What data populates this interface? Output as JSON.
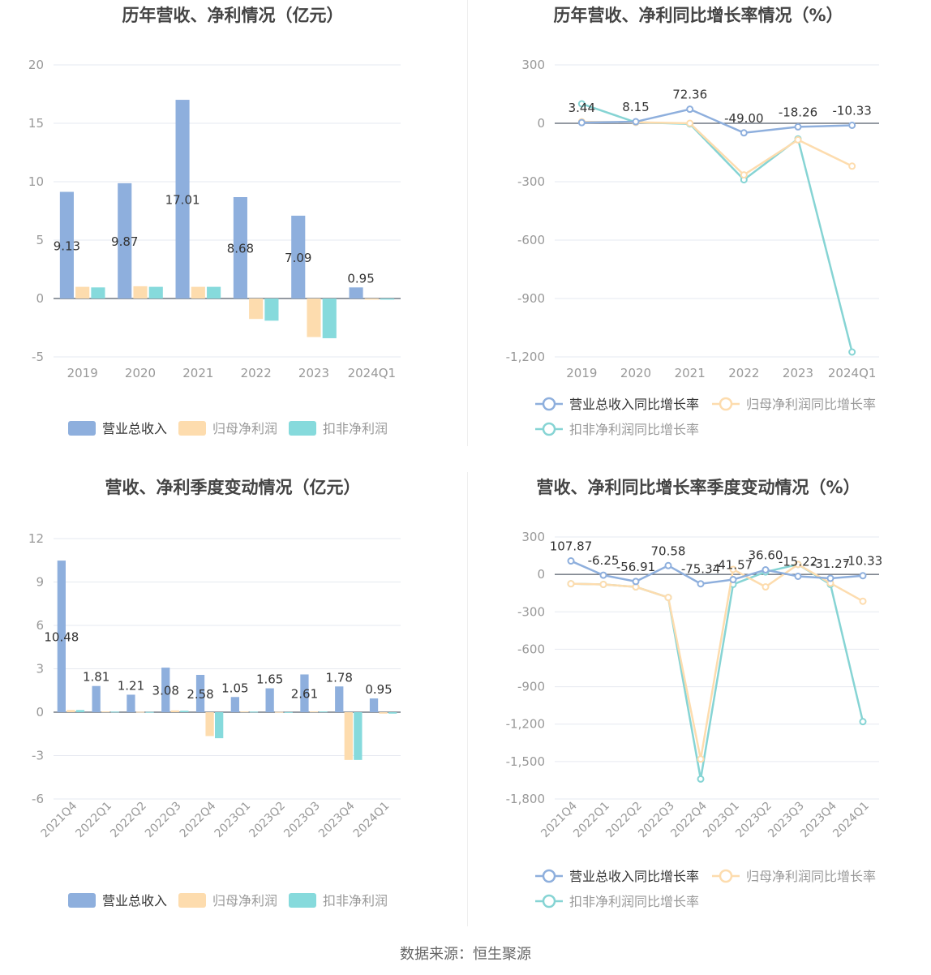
{
  "footer": {
    "source": "数据来源：恒生聚源"
  },
  "colors": {
    "revenue": "#8eafdd",
    "net_profit": "#fddcae",
    "deducted": "#86dadc",
    "line_revenue": "#8eafdd",
    "line_net": "#fddcae",
    "line_deducted": "#86d4d4",
    "grid": "#e6e9f0",
    "axis_text": "#999999",
    "title": "#444444"
  },
  "chart_data": [
    {
      "type": "bar",
      "title": "历年营收、净利情况（亿元）",
      "categories": [
        "2019",
        "2020",
        "2021",
        "2022",
        "2023",
        "2024Q1"
      ],
      "series": [
        {
          "name": "营业总收入",
          "values": [
            9.13,
            9.87,
            17.01,
            8.68,
            7.09,
            0.95
          ],
          "labels": [
            "9.13",
            "9.87",
            "17.01",
            "8.68",
            "7.09",
            "0.95"
          ]
        },
        {
          "name": "归母净利润",
          "values": [
            1.0,
            1.05,
            1.0,
            -1.75,
            -3.3,
            -0.1
          ]
        },
        {
          "name": "扣非净利润",
          "values": [
            0.95,
            1.0,
            1.0,
            -1.9,
            -3.4,
            -0.1
          ]
        }
      ],
      "ylim": [
        -5,
        20
      ],
      "yticks": [
        -5,
        0,
        5,
        10,
        15,
        20
      ],
      "ytick_labels": [
        "-5",
        "0",
        "5",
        "10",
        "15",
        "20"
      ],
      "grid": true,
      "legend": "bottom"
    },
    {
      "type": "line",
      "title": "历年营收、净利同比增长率情况（%）",
      "categories": [
        "2019",
        "2020",
        "2021",
        "2022",
        "2023",
        "2024Q1"
      ],
      "series": [
        {
          "name": "营业总收入同比增长率",
          "values": [
            3.44,
            8.15,
            72.36,
            -49.0,
            -18.26,
            -10.33
          ],
          "labels": [
            "3.44",
            "8.15",
            "72.36",
            "-49.00",
            "-18.26",
            "-10.33"
          ]
        },
        {
          "name": "归母净利润同比增长率",
          "values": [
            8,
            5,
            0,
            -265,
            -85,
            -220
          ]
        },
        {
          "name": "扣非净利润同比增长率",
          "values": [
            100,
            5,
            -3,
            -290,
            -80,
            -1175
          ]
        }
      ],
      "ylim": [
        -1200,
        300
      ],
      "yticks": [
        -1200,
        -900,
        -600,
        -300,
        0,
        300
      ],
      "ytick_labels": [
        "-1,200",
        "-900",
        "-600",
        "-300",
        "0",
        "300"
      ],
      "grid": true,
      "legend": "bottom"
    },
    {
      "type": "bar",
      "title": "营收、净利季度变动情况（亿元）",
      "categories": [
        "2021Q4",
        "2022Q1",
        "2022Q2",
        "2022Q3",
        "2022Q4",
        "2023Q1",
        "2023Q2",
        "2023Q3",
        "2023Q4",
        "2024Q1"
      ],
      "series": [
        {
          "name": "营业总收入",
          "values": [
            10.48,
            1.81,
            1.21,
            3.08,
            2.58,
            1.05,
            1.65,
            2.61,
            1.78,
            0.95
          ],
          "labels": [
            "10.48",
            "1.81",
            "1.21",
            "3.08",
            "2.58",
            "1.05",
            "1.65",
            "2.61",
            "1.78",
            "0.95"
          ]
        },
        {
          "name": "归母净利润",
          "values": [
            0.15,
            0.05,
            0.03,
            0.12,
            -1.65,
            0.05,
            0.02,
            0.05,
            -3.3,
            -0.1
          ]
        },
        {
          "name": "扣非净利润",
          "values": [
            0.15,
            0.04,
            0.02,
            0.1,
            -1.8,
            0.04,
            0.01,
            0.05,
            -3.3,
            -0.1
          ]
        }
      ],
      "ylim": [
        -6,
        12
      ],
      "yticks": [
        -6,
        -3,
        0,
        3,
        6,
        9,
        12
      ],
      "ytick_labels": [
        "-6",
        "-3",
        "0",
        "3",
        "6",
        "9",
        "12"
      ],
      "grid": true,
      "legend": "bottom"
    },
    {
      "type": "line",
      "title": "营收、净利同比增长率季度变动情况（%）",
      "categories": [
        "2021Q4",
        "2022Q1",
        "2022Q2",
        "2022Q3",
        "2022Q4",
        "2023Q1",
        "2023Q2",
        "2023Q3",
        "2023Q4",
        "2024Q1"
      ],
      "series": [
        {
          "name": "营业总收入同比增长率",
          "values": [
            107.87,
            -6.25,
            -56.91,
            70.58,
            -75.34,
            -41.57,
            36.6,
            -15.22,
            -31.27,
            -10.33
          ],
          "labels": [
            "107.87",
            "-6.25",
            "-56.91",
            "70.58",
            "-75.34",
            "-41.57",
            "36.60",
            "-15.22",
            "-31.27",
            "-10.33"
          ]
        },
        {
          "name": "归母净利润同比增长率",
          "values": [
            -75,
            -80,
            -100,
            -185,
            -1480,
            40,
            -100,
            80,
            -70,
            -215
          ]
        },
        {
          "name": "扣非净利润同比增长率",
          "values": [
            -75,
            -80,
            -100,
            -185,
            -1640,
            -80,
            20,
            80,
            -80,
            -1180
          ]
        }
      ],
      "ylim": [
        -1800,
        300
      ],
      "yticks": [
        -1800,
        -1500,
        -1200,
        -900,
        -600,
        -300,
        0,
        300
      ],
      "ytick_labels": [
        "-1,800",
        "-1,500",
        "-1,200",
        "-900",
        "-600",
        "-300",
        "0",
        "300"
      ],
      "grid": true,
      "legend": "bottom"
    }
  ]
}
